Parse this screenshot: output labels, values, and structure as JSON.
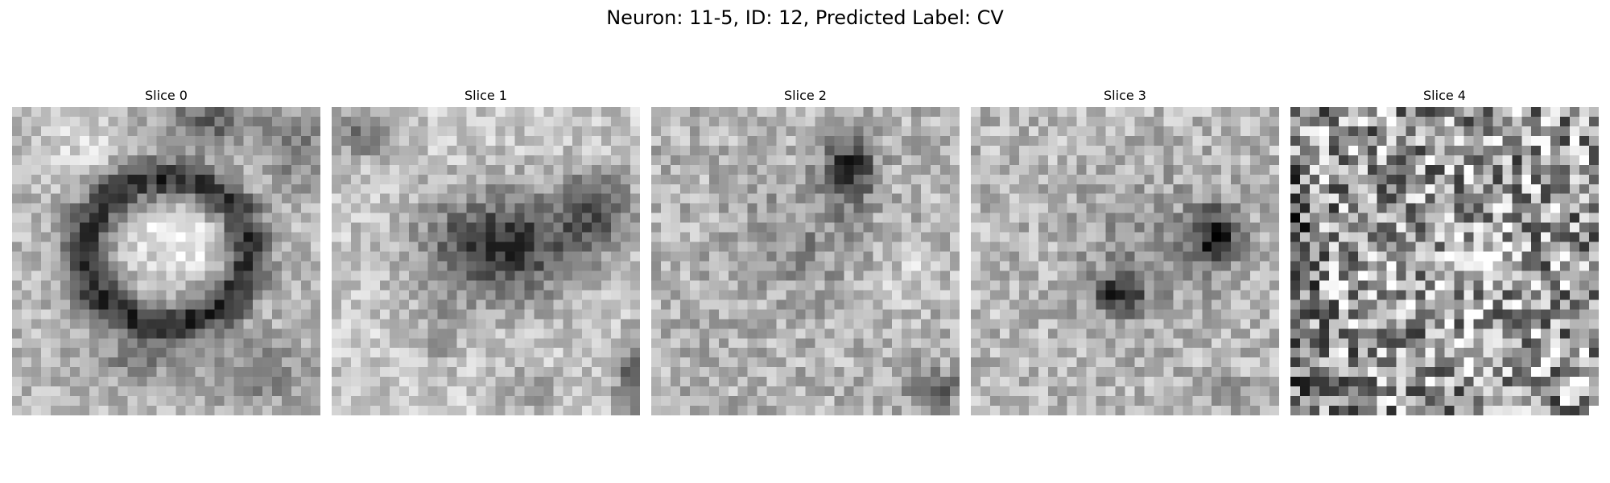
{
  "figure": {
    "title": "Neuron: 11-5, ID: 12, Predicted Label: CV"
  },
  "slices": [
    {
      "label": "Slice 0",
      "description_key": "ring"
    },
    {
      "label": "Slice 1",
      "description_key": "dark-blob"
    },
    {
      "label": "Slice 2",
      "description_key": "upper-spot"
    },
    {
      "label": "Slice 3",
      "description_key": "two-spots"
    },
    {
      "label": "Slice 4",
      "description_key": "noise"
    }
  ],
  "colormap": "gray",
  "grid_size": 32
}
